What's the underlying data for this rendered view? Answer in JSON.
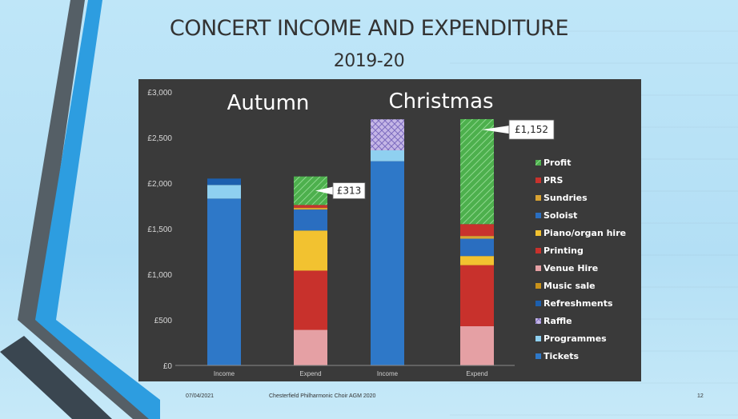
{
  "slide": {
    "title": "CONCERT INCOME AND EXPENDITURE",
    "subtitle": "2019-20",
    "footer_date": "07/04/2021",
    "footer_org": "Chesterfield Philharmonic Choir AGM 2020",
    "page_number": "12"
  },
  "chart_data": {
    "type": "bar",
    "stacked": true,
    "groups": [
      "Autumn",
      "Christmas"
    ],
    "categories": [
      "Income",
      "Expend",
      "Income",
      "Expend"
    ],
    "ylim": [
      0,
      3000
    ],
    "yticks": [
      "£0",
      "£500",
      "£1,000",
      "£1,500",
      "£2,000",
      "£2,500",
      "£3,000"
    ],
    "grid": false,
    "legend_position": "right",
    "series": [
      {
        "name": "Tickets",
        "color": "#2e78c8",
        "values": [
          1830,
          0,
          2240,
          0
        ]
      },
      {
        "name": "Programmes",
        "color": "#8fd0f0",
        "values": [
          150,
          0,
          120,
          0
        ]
      },
      {
        "name": "Raffle",
        "color": "#c5b7e6",
        "pattern": "cross",
        "values": [
          0,
          0,
          340,
          0
        ]
      },
      {
        "name": "Refreshments",
        "color": "#1c5fae",
        "values": [
          70,
          0,
          0,
          0
        ]
      },
      {
        "name": "Music sale",
        "color": "#c9921a",
        "values": [
          0,
          0,
          0,
          0
        ]
      },
      {
        "name": "Venue Hire",
        "color": "#e5a0a4",
        "values": [
          0,
          390,
          0,
          430
        ]
      },
      {
        "name": "Printing",
        "color": "#c8312c",
        "values": [
          0,
          650,
          0,
          670
        ]
      },
      {
        "name": "Piano/organ hire",
        "color": "#f2c230",
        "values": [
          0,
          440,
          0,
          100
        ]
      },
      {
        "name": "Soloist",
        "color": "#2a6ec0",
        "values": [
          0,
          230,
          0,
          190
        ]
      },
      {
        "name": "Sundries",
        "color": "#d9a332",
        "values": [
          0,
          20,
          0,
          30
        ]
      },
      {
        "name": "PRS",
        "color": "#c8322d",
        "values": [
          0,
          30,
          0,
          130
        ]
      },
      {
        "name": "Profit",
        "color": "#4db04d",
        "pattern": "hatch",
        "values": [
          0,
          313,
          0,
          1152
        ]
      }
    ],
    "annotations": [
      {
        "label": "£313",
        "category_index": 1
      },
      {
        "label": "£1,152",
        "category_index": 3
      }
    ]
  }
}
